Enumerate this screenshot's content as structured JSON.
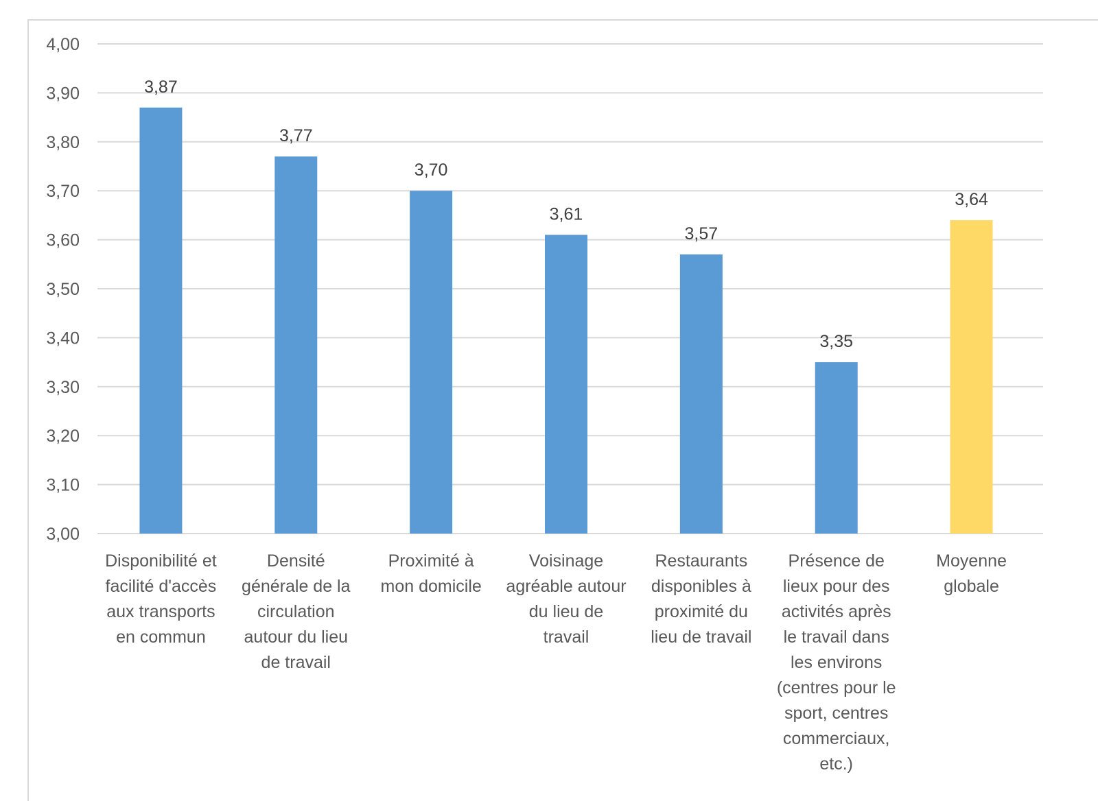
{
  "chart_data": {
    "type": "bar",
    "title": "",
    "xlabel": "",
    "ylabel": "",
    "ylim": [
      3.0,
      4.0
    ],
    "yticks": [
      "3,00",
      "3,10",
      "3,20",
      "3,30",
      "3,40",
      "3,50",
      "3,60",
      "3,70",
      "3,80",
      "3,90",
      "4,00"
    ],
    "grid": true,
    "legend": "none",
    "categories": [
      [
        "Disponibilité et",
        "facilité d'accès",
        "aux transports",
        "en commun"
      ],
      [
        "Densité",
        "générale de la",
        "circulation",
        "autour du lieu",
        "de travail"
      ],
      [
        "Proximité à",
        "mon domicile"
      ],
      [
        "Voisinage",
        "agréable autour",
        "du lieu de",
        "travail"
      ],
      [
        "Restaurants",
        "disponibles à",
        "proximité du",
        "lieu de travail"
      ],
      [
        "Présence de",
        "lieux pour des",
        "activités après",
        "le travail dans",
        "les environs",
        "(centres pour le",
        "sport, centres",
        "commerciaux,",
        "etc.)"
      ],
      [
        "Moyenne",
        "globale"
      ]
    ],
    "values": [
      3.87,
      3.77,
      3.7,
      3.61,
      3.57,
      3.35,
      3.64
    ],
    "value_labels": [
      "3,87",
      "3,77",
      "3,70",
      "3,61",
      "3,57",
      "3,35",
      "3,64"
    ],
    "colors": {
      "bar": "#5b9bd5",
      "highlight": "#ffd966",
      "highlight_index": 6
    }
  }
}
